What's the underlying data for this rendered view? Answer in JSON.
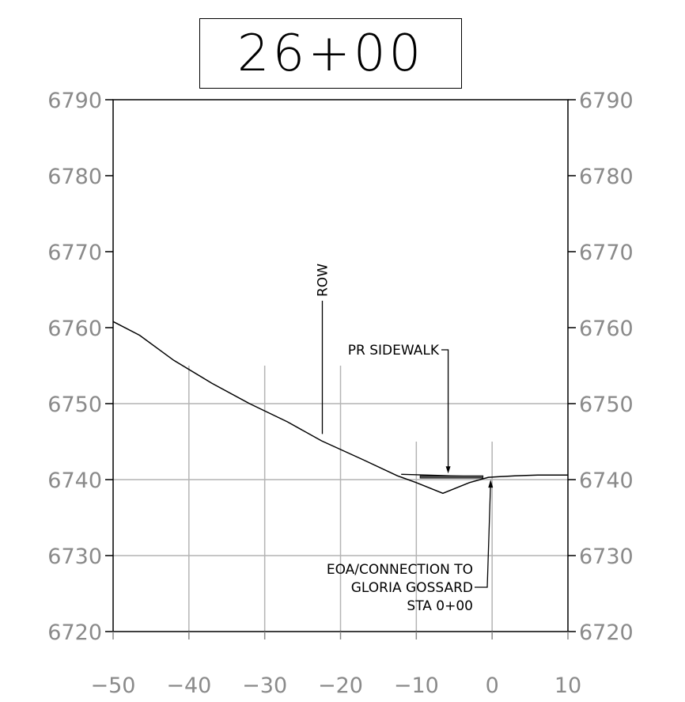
{
  "station_label": "26+00",
  "chart_data": {
    "type": "line",
    "title": "26+00",
    "xlim": [
      -50,
      10
    ],
    "ylim": [
      6720,
      6790
    ],
    "x_ticks": [
      "-50",
      "-40",
      "-30",
      "-20",
      "-10",
      "0",
      "10"
    ],
    "x_tick_values": [
      -50,
      -40,
      -30,
      -20,
      -10,
      0,
      10
    ],
    "y_ticks": [
      "6790",
      "6780",
      "6770",
      "6760",
      "6750",
      "6740",
      "6730",
      "6720"
    ],
    "y_tick_values": [
      6790,
      6780,
      6770,
      6760,
      6750,
      6740,
      6730,
      6720
    ],
    "grid": true,
    "series": [
      {
        "points": [
          [
            -50,
            6760.8
          ],
          [
            -46.5,
            6759.0
          ],
          [
            -42,
            6755.7
          ],
          [
            -37,
            6752.7
          ],
          [
            -32,
            6750.0
          ],
          [
            -27,
            6747.6
          ],
          [
            -22.5,
            6745.1
          ],
          [
            -17,
            6742.6
          ],
          [
            -12.5,
            6740.5
          ],
          [
            -10,
            6739.6
          ],
          [
            -6.5,
            6738.2
          ],
          [
            -3,
            6739.6
          ],
          [
            -0.5,
            6740.3
          ],
          [
            3,
            6740.5
          ],
          [
            6,
            6740.6
          ],
          [
            10,
            6740.6
          ]
        ]
      },
      {
        "points": [
          [
            -12,
            6740.7
          ],
          [
            -2,
            6740.4
          ]
        ]
      }
    ],
    "sidewalk": {
      "x_start": -9.5,
      "x_end": -1.2,
      "elevation": 6740.3
    },
    "annotations": [
      {
        "text": "ROW",
        "target_x": -22.4,
        "target_y": 6746.0
      },
      {
        "text": "PR SIDEWALK",
        "target_x": -5.8,
        "target_y": 6740.5
      },
      {
        "text_lines": [
          "EOA/CONNECTION TO",
          "GLORIA GOSSARD",
          "STA 0+00"
        ],
        "target_x": -0.2,
        "target_y": 6740.3
      }
    ]
  }
}
